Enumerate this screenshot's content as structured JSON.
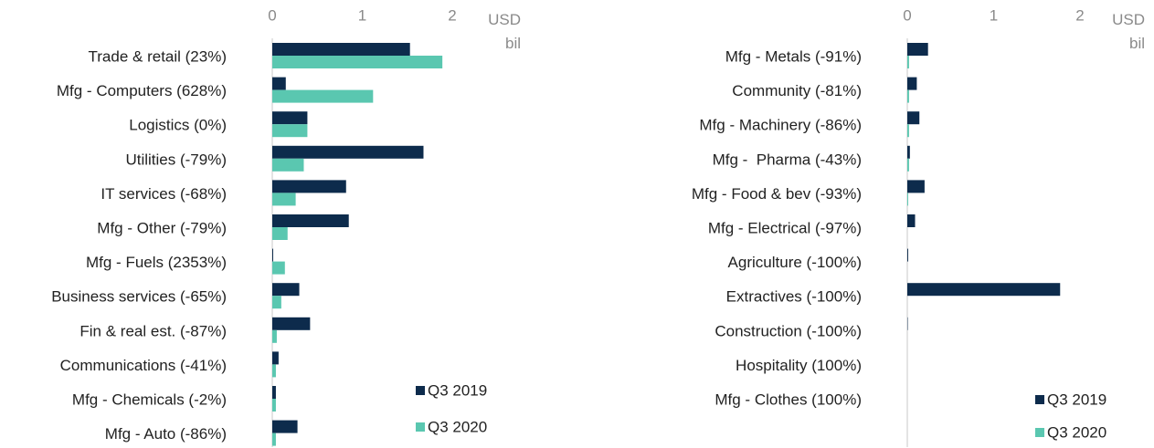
{
  "chart_data": [
    {
      "type": "bar",
      "orientation": "horizontal",
      "xlabel": "USD bil",
      "categories": [
        "Trade & retail (23%)",
        "Mfg - Computers (628%)",
        "Logistics (0%)",
        "Utilities (-79%)",
        "IT services (-68%)",
        "Mfg - Other (-79%)",
        "Mfg - Fuels (2353%)",
        "Business services (-65%)",
        "Fin & real est. (-87%)",
        "Communications (-41%)",
        "Mfg - Chemicals (-2%)",
        "Mfg - Auto (-86%)"
      ],
      "series": [
        {
          "name": "Q3 2019",
          "color": "#0d2b4c",
          "values": [
            1.53,
            0.15,
            0.39,
            1.68,
            0.82,
            0.85,
            0.01,
            0.3,
            0.42,
            0.07,
            0.04,
            0.28
          ]
        },
        {
          "name": "Q3 2020",
          "color": "#5ac7b0",
          "values": [
            1.89,
            1.12,
            0.39,
            0.35,
            0.26,
            0.17,
            0.14,
            0.1,
            0.05,
            0.04,
            0.04,
            0.04
          ]
        }
      ],
      "xlim": [
        0,
        2
      ],
      "xticks": [
        0,
        1,
        2
      ],
      "legend": "lower right"
    },
    {
      "type": "bar",
      "orientation": "horizontal",
      "xlabel": "USD bil",
      "categories": [
        "Mfg - Metals (-91%)",
        "Community (-81%)",
        "Mfg - Machinery (-86%)",
        "Mfg -  Pharma (-43%)",
        "Mfg - Food & bev (-93%)",
        "Mfg - Electrical (-97%)",
        "Agriculture (-100%)",
        "Extractives (-100%)",
        "Construction (-100%)",
        "Hospitality (100%)",
        "Mfg - Clothes (100%)"
      ],
      "series": [
        {
          "name": "Q3 2019",
          "color": "#0d2b4c",
          "values": [
            0.24,
            0.11,
            0.14,
            0.03,
            0.2,
            0.09,
            0.01,
            1.77,
            0.005,
            0,
            0
          ]
        },
        {
          "name": "Q3 2020",
          "color": "#5ac7b0",
          "values": [
            0.02,
            0.02,
            0.02,
            0.02,
            0.01,
            0,
            0,
            0,
            0,
            0,
            0
          ]
        }
      ],
      "xlim": [
        0,
        2
      ],
      "xticks": [
        0,
        1,
        2
      ],
      "legend": "lower right"
    }
  ]
}
